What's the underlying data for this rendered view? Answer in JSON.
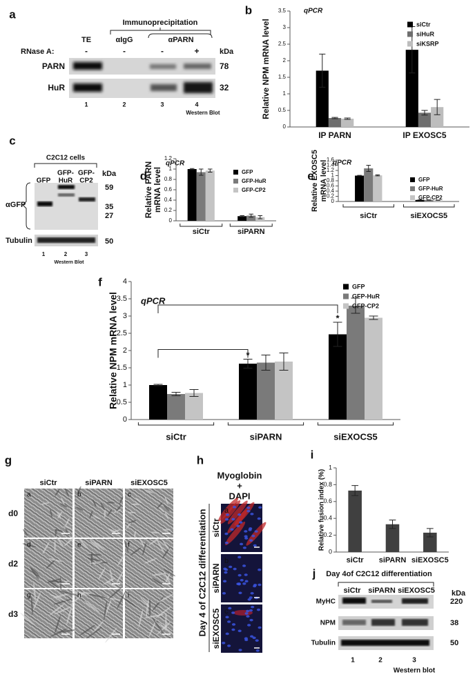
{
  "panel_a": {
    "letter": "a",
    "header": "Immunoprecipitation",
    "lanes": [
      "TE",
      "αIgG",
      "αPARN"
    ],
    "treatment_label": "RNase A:",
    "treatment": [
      "-",
      "-",
      "-",
      "+"
    ],
    "kda_label": "kDa",
    "rows": [
      {
        "label": "PARN",
        "kda": 78
      },
      {
        "label": "HuR",
        "kda": 32
      }
    ],
    "lane_numbers": [
      1,
      2,
      3,
      4
    ],
    "footer": "Western Blot"
  },
  "panel_c": {
    "letter": "c",
    "header": "C2C12 cells",
    "lanes": [
      [
        "GFP"
      ],
      [
        "GFP-",
        "HuR"
      ],
      [
        "GFP-",
        "CP2"
      ]
    ],
    "kda_label": "kDa",
    "kda_markers": [
      59,
      35,
      27,
      50
    ],
    "row_labels": [
      "αGFP",
      "Tubulin"
    ],
    "lane_numbers": [
      1,
      2,
      3
    ],
    "footer": "Western Blot"
  },
  "panel_g": {
    "letter": "g",
    "columns": [
      "siCtr",
      "siPARN",
      "siEXOSC5"
    ],
    "rows": [
      "d0",
      "d2",
      "d3"
    ],
    "tiles": [
      "a",
      "b",
      "c",
      "d",
      "e",
      "f",
      "g",
      "h",
      "i"
    ]
  },
  "panel_h": {
    "letter": "h",
    "title": [
      "Myoglobin",
      "+",
      "DAPI"
    ],
    "side_label": "Day 4 of C2C12 differentiation",
    "rows": [
      "siCtr",
      "siPARN",
      "siEXOSC5"
    ],
    "tiles": [
      "a",
      "b",
      "c"
    ]
  },
  "panel_j": {
    "letter": "j",
    "title": "Day 4of C2C12 differentiation",
    "lanes": [
      "siCtr",
      "siPARN",
      "siEXOSC5"
    ],
    "kda_label": "kDa",
    "rows": [
      {
        "label": "MyHC",
        "kda": 220
      },
      {
        "label": "NPM",
        "kda": 38
      },
      {
        "label": "Tubulin",
        "kda": 50
      }
    ],
    "lane_numbers": [
      1,
      2,
      3
    ],
    "footer": "Western blot"
  },
  "chart_data": [
    {
      "type": "bar",
      "panel": "b",
      "title": "qPCR",
      "ylabel": "Relative NPM mRNA level",
      "categories": [
        "IP PARN",
        "IP EXOSC5"
      ],
      "ylim": [
        0,
        3.5
      ],
      "yticks": [
        0,
        0.5,
        1,
        1.5,
        2,
        2.5,
        3,
        3.5
      ],
      "series": [
        {
          "name": "siCtr",
          "color": "#000000",
          "values": [
            1.7,
            2.33
          ],
          "errors": [
            0.5,
            0.7
          ]
        },
        {
          "name": "siHuR",
          "color": "#6e6e6e",
          "values": [
            0.27,
            0.43
          ],
          "errors": [
            0.02,
            0.07
          ]
        },
        {
          "name": "siKSRP",
          "color": "#bdbdbd",
          "values": [
            0.25,
            0.6
          ],
          "errors": [
            0.02,
            0.23
          ]
        }
      ]
    },
    {
      "type": "bar",
      "panel": "d",
      "title": "qPCR",
      "ylabel": [
        "Relative PARN",
        "mRNA level"
      ],
      "categories": [
        "siCtr",
        "siPARN"
      ],
      "ylim": [
        0,
        1.2
      ],
      "yticks": [
        0,
        0.2,
        0.4,
        0.6,
        0.8,
        1,
        1.2
      ],
      "series": [
        {
          "name": "GFP",
          "color": "#000000",
          "values": [
            1.0,
            0.09
          ],
          "errors": [
            0.01,
            0.01
          ]
        },
        {
          "name": "GFP-HuR",
          "color": "#7a7a7a",
          "values": [
            0.94,
            0.1
          ],
          "errors": [
            0.06,
            0.03
          ]
        },
        {
          "name": "GFP-CP2",
          "color": "#c4c4c4",
          "values": [
            0.97,
            0.07
          ],
          "errors": [
            0.03,
            0.03
          ]
        }
      ]
    },
    {
      "type": "bar",
      "panel": "e",
      "title": "qPCR",
      "ylabel": [
        "Relative EXOSC5",
        "mRNA level"
      ],
      "categories": [
        "siCtr",
        "siEXOCS5"
      ],
      "ylim": [
        0,
        1.6
      ],
      "yticks": [
        0,
        0.2,
        0.4,
        0.6,
        0.8,
        1,
        1.2,
        1.4,
        1.6
      ],
      "series": [
        {
          "name": "GFP",
          "color": "#000000",
          "values": [
            1.0,
            0.06
          ],
          "errors": [
            0.01,
            0.005
          ]
        },
        {
          "name": "GFP-HuR",
          "color": "#7a7a7a",
          "values": [
            1.28,
            0.06
          ],
          "errors": [
            0.12,
            0.005
          ]
        },
        {
          "name": "GFP-CP2",
          "color": "#c4c4c4",
          "values": [
            1.01,
            0.05
          ],
          "errors": [
            0.02,
            0.005
          ]
        }
      ]
    },
    {
      "type": "bar",
      "panel": "f",
      "title": "qPCR",
      "ylabel": "Relative NPM mRNA level",
      "categories": [
        "siCtr",
        "siPARN",
        "siEXOCS5"
      ],
      "ylim": [
        0,
        4
      ],
      "yticks": [
        0,
        0.5,
        1,
        1.5,
        2,
        2.5,
        3,
        3.5,
        4
      ],
      "annotations": [
        "*",
        "*"
      ],
      "series": [
        {
          "name": "GFP",
          "color": "#000000",
          "values": [
            1.0,
            1.62,
            2.47
          ],
          "errors": [
            0.02,
            0.13,
            0.35
          ]
        },
        {
          "name": "GFP-HuR",
          "color": "#7a7a7a",
          "values": [
            0.74,
            1.65,
            3.3
          ],
          "errors": [
            0.05,
            0.22,
            0.22
          ]
        },
        {
          "name": "GFP-CP2",
          "color": "#c4c4c4",
          "values": [
            0.77,
            1.68,
            2.95
          ],
          "errors": [
            0.1,
            0.25,
            0.05
          ]
        }
      ]
    },
    {
      "type": "bar",
      "panel": "i",
      "ylabel": "Relative fusion index (%)",
      "categories": [
        "siCtr",
        "siPARN",
        "siEXOSC5"
      ],
      "ylim": [
        0,
        1
      ],
      "yticks": [
        0,
        0.2,
        0.4,
        0.6,
        0.8,
        1
      ],
      "color": "#404040",
      "values": [
        0.73,
        0.33,
        0.23
      ],
      "errors": [
        0.06,
        0.05,
        0.05
      ]
    }
  ]
}
